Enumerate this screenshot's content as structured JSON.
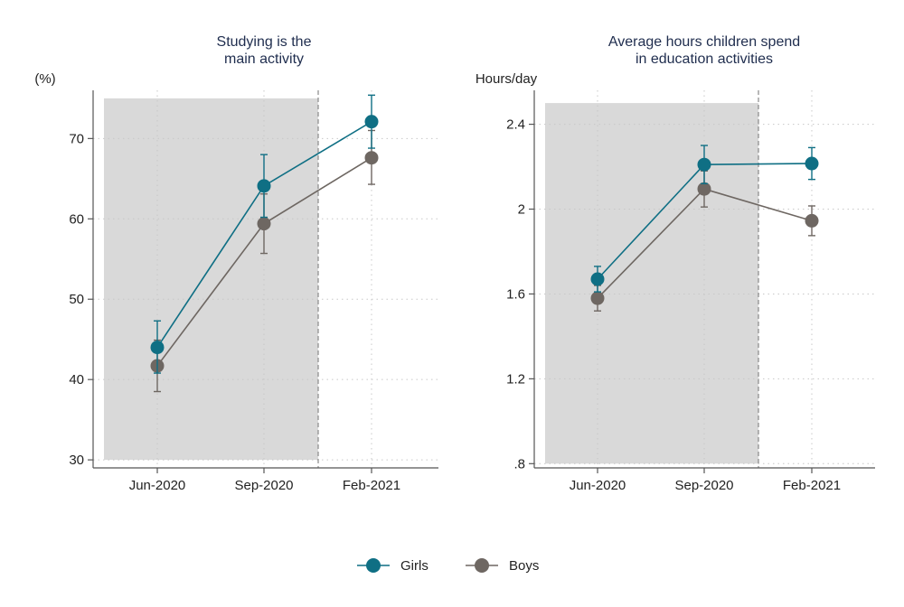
{
  "chart_data": [
    {
      "type": "line",
      "title_lines": [
        "Studying is the",
        "main activity"
      ],
      "ylabel": "(%)",
      "xlabel": "",
      "categories": [
        "Jun-2020",
        "Sep-2020",
        "Feb-2021"
      ],
      "ylim": [
        29,
        76
      ],
      "yticks": [
        30,
        40,
        50,
        60,
        70
      ],
      "ytick_labels": [
        "30",
        "40",
        "50",
        "60",
        "70"
      ],
      "shaded_region": {
        "y_from": 30,
        "y_to": 75,
        "through_category": "Sep-2020"
      },
      "series": [
        {
          "name": "Girls",
          "color": "#0f6f84",
          "values": [
            44.0,
            64.1,
            72.1
          ],
          "ci_low": [
            40.8,
            60.2,
            68.8
          ],
          "ci_high": [
            47.3,
            68.0,
            75.4
          ]
        },
        {
          "name": "Boys",
          "color": "#6e6762",
          "values": [
            41.7,
            59.4,
            67.6
          ],
          "ci_low": [
            38.5,
            55.7,
            64.3
          ],
          "ci_high": [
            44.9,
            63.1,
            71.0
          ]
        }
      ]
    },
    {
      "type": "line",
      "title_lines": [
        "Average hours children spend",
        "in education activities"
      ],
      "ylabel": "Hours/day",
      "xlabel": "",
      "categories": [
        "Jun-2020",
        "Sep-2020",
        "Feb-2021"
      ],
      "ylim": [
        0.78,
        2.56
      ],
      "yticks": [
        0.8,
        1.2,
        1.6,
        2.0,
        2.4
      ],
      "ytick_labels": [
        ".8",
        "1.2",
        "1.6",
        "2",
        "2.4"
      ],
      "shaded_region": {
        "y_from": 0.8,
        "y_to": 2.5,
        "through_category": "Sep-2020"
      },
      "series": [
        {
          "name": "Girls",
          "color": "#0f6f84",
          "values": [
            1.67,
            2.21,
            2.215
          ],
          "ci_low": [
            1.61,
            2.12,
            2.14
          ],
          "ci_high": [
            1.73,
            2.3,
            2.29
          ]
        },
        {
          "name": "Boys",
          "color": "#6e6762",
          "values": [
            1.58,
            2.095,
            1.945
          ],
          "ci_low": [
            1.52,
            2.01,
            1.875
          ],
          "ci_high": [
            1.64,
            2.18,
            2.015
          ]
        }
      ]
    }
  ],
  "legend": {
    "items": [
      {
        "label": "Girls",
        "color": "#0f6f84"
      },
      {
        "label": "Boys",
        "color": "#6e6762"
      }
    ]
  },
  "colors": {
    "shade": "#d9d9d9",
    "title": "#1f2d4e",
    "axis": "#555555",
    "grid": "#c8c8c8"
  }
}
